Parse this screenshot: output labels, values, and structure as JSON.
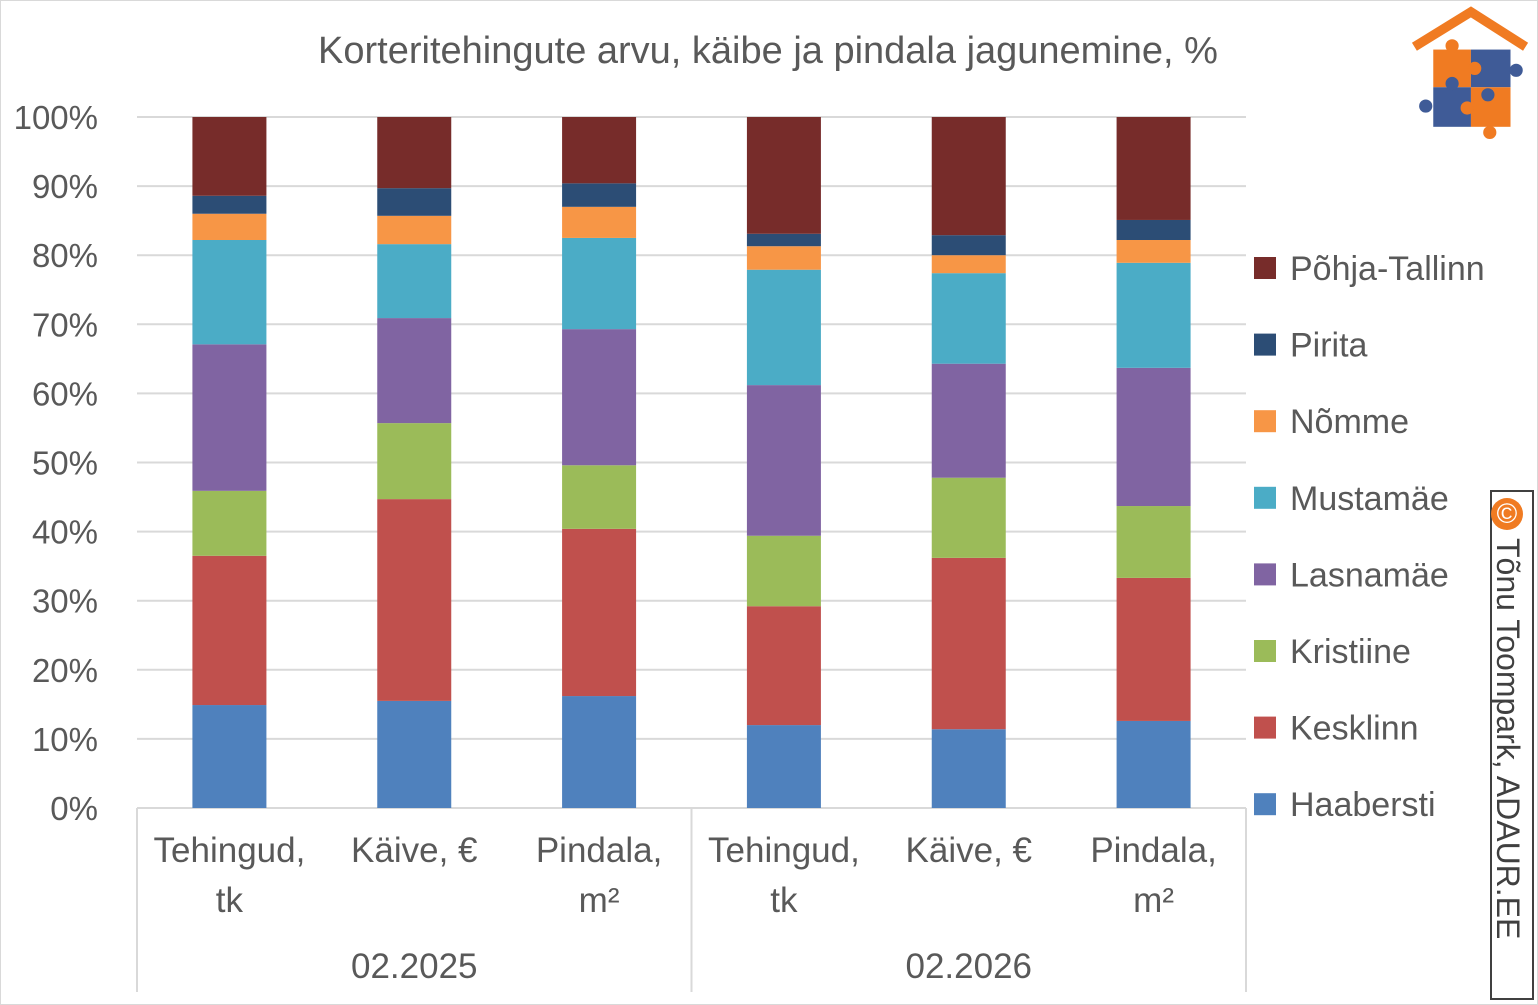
{
  "chart_data": {
    "type": "bar",
    "stacked": true,
    "title": "Korteritehingute arvu, käibe ja pindala jagunemine, %",
    "ylim": [
      0,
      100
    ],
    "yticks": [
      "0%",
      "10%",
      "20%",
      "30%",
      "40%",
      "50%",
      "60%",
      "70%",
      "80%",
      "90%",
      "100%"
    ],
    "grid": true,
    "legend_position": "right",
    "groups": [
      {
        "label": "02.2025",
        "categories": [
          [
            "Tehingud,",
            "tk"
          ],
          [
            "Käive, €"
          ],
          [
            "Pindala,",
            "m²"
          ]
        ]
      },
      {
        "label": "02.2026",
        "categories": [
          [
            "Tehingud,",
            "tk"
          ],
          [
            "Käive, €"
          ],
          [
            "Pindala,",
            "m²"
          ]
        ]
      }
    ],
    "series": [
      {
        "name": "Haabersti",
        "color": "#4f81bd",
        "values": [
          14.9,
          15.5,
          16.2,
          12.0,
          11.4,
          12.6
        ]
      },
      {
        "name": "Kesklinn",
        "color": "#c0504d",
        "values": [
          21.6,
          29.2,
          24.2,
          17.2,
          24.8,
          20.7
        ]
      },
      {
        "name": "Kristiine",
        "color": "#9bbb59",
        "values": [
          9.4,
          11.0,
          9.2,
          10.2,
          11.6,
          10.4
        ]
      },
      {
        "name": "Lasnamäe",
        "color": "#8064a2",
        "values": [
          21.2,
          15.2,
          19.7,
          21.8,
          16.5,
          20.0
        ]
      },
      {
        "name": "Mustamäe",
        "color": "#4bacc6",
        "values": [
          15.1,
          10.7,
          13.2,
          16.7,
          13.1,
          15.2
        ]
      },
      {
        "name": "Nõmme",
        "color": "#f79646",
        "values": [
          3.8,
          4.1,
          4.5,
          3.4,
          2.6,
          3.3
        ]
      },
      {
        "name": "Pirita",
        "color": "#2c4d75",
        "values": [
          2.6,
          4.0,
          3.4,
          1.8,
          2.9,
          2.9
        ]
      },
      {
        "name": "Põhja-Tallinn",
        "color": "#772c2a",
        "values": [
          11.4,
          10.3,
          9.6,
          16.9,
          17.1,
          14.9
        ]
      }
    ]
  },
  "watermark": {
    "symbol": "©",
    "text": "Tõnu Toompark, ADAUR.EE"
  },
  "logo": {
    "name": "house-puzzle-logo",
    "colors": [
      "#f07b22",
      "#3f5b97"
    ]
  }
}
